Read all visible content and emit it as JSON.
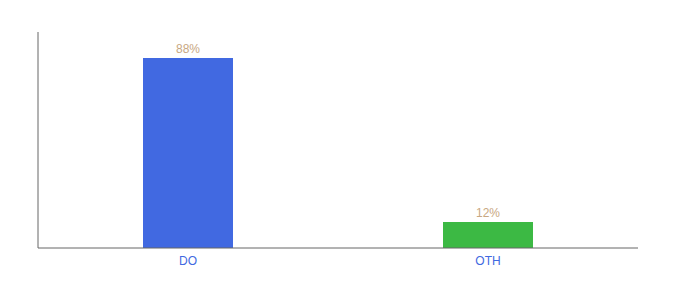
{
  "chart_data": {
    "type": "bar",
    "categories": [
      "DO",
      "OTH"
    ],
    "values": [
      88,
      12
    ],
    "value_labels": [
      "88%",
      "12%"
    ],
    "colors": [
      "#4169e1",
      "#3cb944"
    ],
    "ylim": [
      0,
      100
    ],
    "yticks": [],
    "data_labels": true,
    "tick_labels": "x",
    "grid": false
  }
}
